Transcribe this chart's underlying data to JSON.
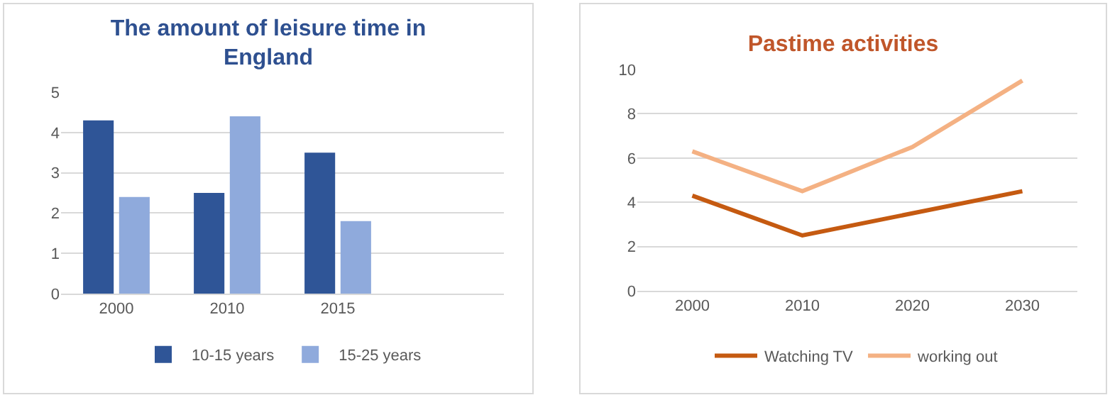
{
  "chart_data": [
    {
      "type": "bar",
      "title": "The amount of leisure time in England",
      "categories": [
        "2000",
        "2010",
        "2015",
        null
      ],
      "series": [
        {
          "name": "10-15 years",
          "color": "#2f5597",
          "values": [
            4.3,
            2.5,
            3.5,
            null
          ]
        },
        {
          "name": "15-25 years",
          "color": "#8faadc",
          "values": [
            2.4,
            4.4,
            1.8,
            null
          ]
        }
      ],
      "ylim": [
        0,
        5
      ],
      "yticks": [
        0,
        1,
        2,
        3,
        4,
        5
      ],
      "grid": "y",
      "legend": "bottom"
    },
    {
      "type": "line",
      "title": "Pastime activities",
      "categories": [
        "2000",
        "2010",
        "2020",
        "2030"
      ],
      "series": [
        {
          "name": "Watching TV",
          "color": "#c55a11",
          "values": [
            4.3,
            2.5,
            3.5,
            4.5
          ]
        },
        {
          "name": "working out",
          "color": "#f4b183",
          "values": [
            6.3,
            4.5,
            6.5,
            9.5
          ]
        }
      ],
      "ylim": [
        0,
        10
      ],
      "yticks": [
        0,
        2,
        4,
        6,
        8,
        10
      ],
      "grid": "y",
      "legend": "bottom",
      "marker": "none",
      "line_style": "solid"
    }
  ]
}
